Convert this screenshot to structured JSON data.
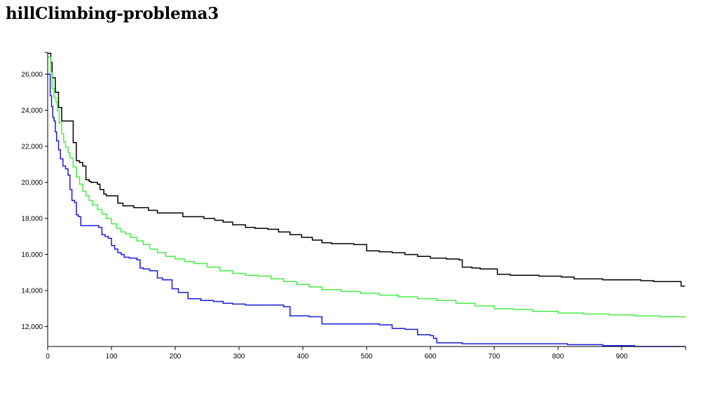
{
  "title": "hillClimbing-problema3",
  "chart_data": {
    "type": "line",
    "title": "hillClimbing-problema3",
    "xlabel": "",
    "ylabel": "",
    "xlim": [
      0,
      1000
    ],
    "ylim": [
      10900,
      27200
    ],
    "x_ticks": [
      0,
      100,
      200,
      300,
      400,
      500,
      600,
      700,
      800,
      900
    ],
    "y_ticks": [
      12000,
      14000,
      16000,
      18000,
      20000,
      22000,
      24000,
      26000
    ],
    "x_tick_labels": [
      "0",
      "100",
      "200",
      "300",
      "400",
      "500",
      "600",
      "700",
      "800",
      "900"
    ],
    "y_tick_labels": [
      "12,000",
      "14,000",
      "16,000",
      "18,000",
      "20,000",
      "22,000",
      "24,000",
      "26,000"
    ],
    "grid": false,
    "legend": "none",
    "series": [
      {
        "color": "#000000",
        "x": [
          0,
          2,
          5,
          7,
          10,
          12,
          15,
          17,
          20,
          22,
          25,
          27,
          30,
          33,
          37,
          40,
          42,
          45,
          47,
          50,
          55,
          60,
          62,
          65,
          68,
          72,
          75,
          78,
          82,
          85,
          88,
          92,
          97,
          102,
          110,
          118,
          125,
          135,
          145,
          158,
          172,
          188,
          200,
          212,
          228,
          245,
          262,
          275,
          290,
          310,
          325,
          345,
          362,
          380,
          398,
          415,
          430,
          445,
          462,
          480,
          500,
          520,
          540,
          560,
          580,
          600,
          625,
          645,
          650,
          665,
          678,
          690,
          705,
          725,
          745,
          770,
          790,
          805,
          825,
          850,
          870,
          890,
          910,
          930,
          950,
          970,
          990,
          993,
          999
        ],
        "y": [
          27150,
          27150,
          26650,
          25800,
          25800,
          25000,
          25000,
          24150,
          24150,
          23400,
          23400,
          23400,
          23400,
          23400,
          23400,
          22200,
          22200,
          21200,
          21200,
          21100,
          20900,
          20150,
          20150,
          20050,
          20000,
          20000,
          20000,
          19900,
          19600,
          19600,
          19350,
          19250,
          19250,
          19250,
          18850,
          18700,
          18700,
          18600,
          18600,
          18450,
          18300,
          18300,
          18300,
          18100,
          18100,
          18000,
          17900,
          17800,
          17650,
          17500,
          17450,
          17400,
          17250,
          17100,
          16950,
          16800,
          16650,
          16600,
          16600,
          16550,
          16200,
          16150,
          16100,
          16000,
          15900,
          15800,
          15750,
          15700,
          15300,
          15250,
          15200,
          15200,
          14900,
          14850,
          14850,
          14800,
          14800,
          14750,
          14650,
          14650,
          14600,
          14600,
          14600,
          14550,
          14500,
          14500,
          14500,
          14250,
          14250
        ]
      },
      {
        "color": "#44ee44",
        "x": [
          0,
          2,
          5,
          7,
          10,
          13,
          15,
          18,
          22,
          25,
          28,
          32,
          35,
          40,
          45,
          50,
          55,
          60,
          65,
          70,
          78,
          85,
          92,
          100,
          108,
          115,
          122,
          130,
          140,
          150,
          160,
          172,
          185,
          200,
          215,
          230,
          250,
          270,
          290,
          310,
          330,
          350,
          370,
          390,
          410,
          430,
          460,
          490,
          520,
          550,
          580,
          610,
          640,
          670,
          700,
          730,
          760,
          800,
          840,
          880,
          920,
          960,
          999
        ],
        "y": [
          26950,
          26950,
          26100,
          25200,
          24700,
          24450,
          24000,
          23300,
          22700,
          22250,
          21950,
          21650,
          21350,
          20850,
          20300,
          19900,
          19500,
          19250,
          19000,
          18750,
          18500,
          18250,
          18000,
          17700,
          17450,
          17250,
          17150,
          16950,
          16750,
          16550,
          16300,
          16100,
          15900,
          15750,
          15600,
          15500,
          15300,
          15100,
          14950,
          14850,
          14800,
          14650,
          14500,
          14350,
          14200,
          14050,
          13950,
          13850,
          13750,
          13650,
          13550,
          13450,
          13300,
          13150,
          13000,
          12950,
          12850,
          12750,
          12700,
          12650,
          12600,
          12550,
          12500
        ]
      },
      {
        "color": "#1a1adb",
        "x": [
          0,
          2,
          4,
          6,
          8,
          10,
          12,
          14,
          17,
          20,
          24,
          28,
          32,
          35,
          38,
          42,
          45,
          48,
          52,
          60,
          70,
          80,
          85,
          90,
          95,
          100,
          105,
          110,
          115,
          120,
          128,
          135,
          140,
          145,
          150,
          160,
          172,
          180,
          195,
          205,
          220,
          240,
          260,
          275,
          290,
          310,
          330,
          350,
          370,
          380,
          400,
          410,
          430,
          450,
          470,
          490,
          510,
          520,
          540,
          560,
          580,
          600,
          605,
          610,
          630,
          650,
          680,
          720,
          760,
          790,
          815,
          840,
          870,
          890,
          920,
          950,
          999
        ],
        "y": [
          26000,
          26000,
          24800,
          24200,
          23600,
          23400,
          22800,
          22300,
          21800,
          21300,
          20900,
          20750,
          20400,
          19600,
          19000,
          18900,
          18200,
          18100,
          17600,
          17600,
          17600,
          17500,
          17100,
          17000,
          16900,
          16500,
          16300,
          16100,
          16000,
          15850,
          15800,
          15800,
          15700,
          15250,
          15200,
          15100,
          14700,
          14600,
          14100,
          13900,
          13550,
          13450,
          13400,
          13300,
          13250,
          13200,
          13200,
          13200,
          13100,
          12600,
          12600,
          12550,
          12150,
          12150,
          12150,
          12150,
          12150,
          12100,
          11900,
          11850,
          11550,
          11500,
          11350,
          11100,
          11100,
          11050,
          11050,
          11050,
          11050,
          11050,
          11000,
          11000,
          10950,
          10950,
          10900,
          10900,
          10900
        ]
      }
    ]
  }
}
